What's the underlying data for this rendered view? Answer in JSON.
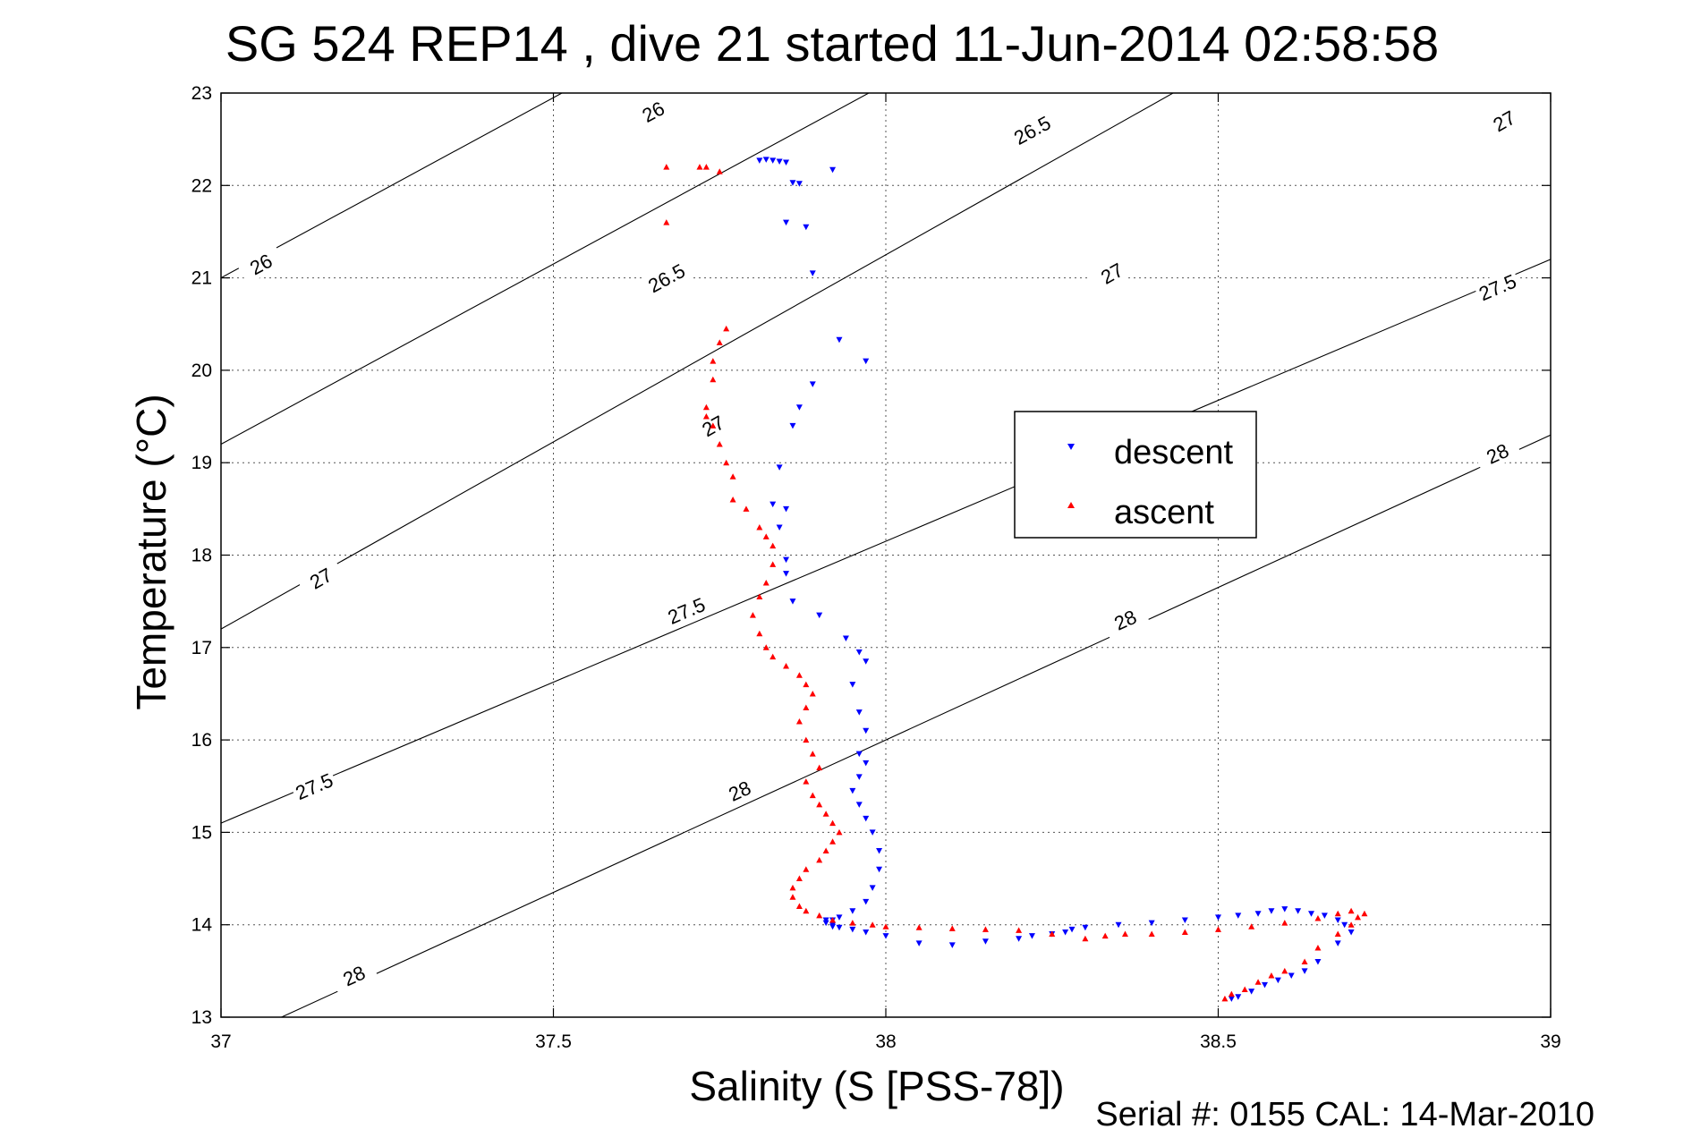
{
  "chart_data": {
    "type": "scatter",
    "title": "SG 524   REP14  , dive 21 started 11-Jun-2014 02:58:58",
    "xlabel": "Salinity (S [PSS-78])",
    "ylabel": "Temperature (°C)",
    "xlim": [
      37,
      39
    ],
    "ylim": [
      13,
      23
    ],
    "x_ticks": [
      "37",
      "37.5",
      "38",
      "38.5",
      "39"
    ],
    "y_ticks": [
      "13",
      "14",
      "15",
      "16",
      "17",
      "18",
      "19",
      "20",
      "21",
      "22",
      "23"
    ],
    "grid": true,
    "legend_position": "center-right",
    "footer": "Serial #: 0155  CAL: 14-Mar-2010",
    "density_contours": [
      {
        "label": "26",
        "x": [
          37,
          39
        ],
        "y": [
          21.0,
          28.8
        ],
        "label_positions": [
          [
            37.06,
            21.15
          ],
          [
            37.65,
            22.8
          ]
        ]
      },
      {
        "label": "26.5",
        "x": [
          37,
          39
        ],
        "y": [
          19.2,
          27.0
        ],
        "label_positions": [
          [
            37.67,
            21.0
          ],
          [
            38.22,
            22.6
          ]
        ]
      },
      {
        "label": "27",
        "x": [
          37,
          39
        ],
        "y": [
          17.2,
          25.3
        ],
        "label_positions": [
          [
            37.15,
            17.75
          ],
          [
            37.74,
            19.4
          ],
          [
            38.34,
            21.05
          ],
          [
            38.93,
            22.7
          ]
        ]
      },
      {
        "label": "27.5",
        "x": [
          37,
          39
        ],
        "y": [
          15.1,
          21.2
        ],
        "label_positions": [
          [
            37.14,
            15.5
          ],
          [
            37.7,
            17.4
          ],
          [
            38.92,
            20.9
          ]
        ]
      },
      {
        "label": "28",
        "x": [
          37,
          39
        ],
        "y": [
          12.7,
          19.3
        ],
        "label_positions": [
          [
            37.2,
            13.45
          ],
          [
            37.78,
            15.45
          ],
          [
            38.36,
            17.3
          ],
          [
            38.92,
            19.1
          ]
        ]
      }
    ],
    "series": [
      {
        "name": "descent",
        "color": "#0000ff",
        "marker": "triangle-down",
        "x": [
          37.81,
          37.82,
          37.83,
          37.84,
          37.85,
          37.86,
          37.87,
          37.92,
          37.85,
          37.88,
          37.89,
          37.93,
          37.97,
          37.89,
          37.87,
          37.86,
          37.84,
          37.83,
          37.85,
          37.84,
          37.85,
          37.85,
          37.86,
          37.9,
          37.94,
          37.96,
          37.97,
          37.95,
          37.96,
          37.97,
          37.96,
          37.97,
          37.96,
          37.95,
          37.96,
          37.97,
          37.98,
          37.99,
          37.99,
          37.98,
          37.97,
          37.95,
          37.93,
          37.92,
          37.91,
          37.91,
          37.92,
          37.92,
          37.93,
          37.95,
          37.97,
          38.0,
          38.05,
          38.1,
          38.15,
          38.2,
          38.22,
          38.25,
          38.27,
          38.28,
          38.3,
          38.35,
          38.4,
          38.45,
          38.5,
          38.53,
          38.56,
          38.58,
          38.6,
          38.62,
          38.64,
          38.66,
          38.68,
          38.69,
          38.7,
          38.68,
          38.65,
          38.63,
          38.61,
          38.59,
          38.57,
          38.55,
          38.53,
          38.52
        ],
        "y": [
          22.27,
          22.28,
          22.27,
          22.26,
          22.25,
          22.03,
          22.02,
          22.17,
          21.6,
          21.55,
          21.05,
          20.33,
          20.1,
          19.85,
          19.6,
          19.4,
          18.95,
          18.55,
          18.5,
          18.3,
          17.95,
          17.8,
          17.5,
          17.35,
          17.1,
          16.95,
          16.85,
          16.6,
          16.3,
          16.1,
          15.85,
          15.75,
          15.6,
          15.45,
          15.3,
          15.15,
          15.0,
          14.8,
          14.6,
          14.4,
          14.25,
          14.15,
          14.08,
          14.05,
          14.05,
          14.02,
          14.0,
          13.98,
          13.97,
          13.95,
          13.92,
          13.88,
          13.8,
          13.78,
          13.82,
          13.85,
          13.88,
          13.9,
          13.92,
          13.95,
          13.97,
          14.0,
          14.02,
          14.05,
          14.08,
          14.1,
          14.12,
          14.15,
          14.17,
          14.15,
          14.12,
          14.1,
          14.05,
          14.0,
          13.92,
          13.8,
          13.6,
          13.5,
          13.45,
          13.4,
          13.35,
          13.28,
          13.22,
          13.2
        ]
      },
      {
        "name": "ascent",
        "color": "#ff0000",
        "marker": "triangle-up",
        "x": [
          37.67,
          37.72,
          37.73,
          37.75,
          37.67,
          37.76,
          37.75,
          37.74,
          37.74,
          37.73,
          37.73,
          37.74,
          37.75,
          37.76,
          37.77,
          37.77,
          37.79,
          37.81,
          37.82,
          37.83,
          37.83,
          37.82,
          37.81,
          37.8,
          37.81,
          37.82,
          37.83,
          37.85,
          37.87,
          37.88,
          37.89,
          37.88,
          37.87,
          37.88,
          37.89,
          37.9,
          37.88,
          37.89,
          37.9,
          37.91,
          37.92,
          37.93,
          37.92,
          37.91,
          37.9,
          37.88,
          37.87,
          37.86,
          37.86,
          37.87,
          37.88,
          37.9,
          37.92,
          37.95,
          37.98,
          38.0,
          38.05,
          38.1,
          38.15,
          38.2,
          38.25,
          38.3,
          38.33,
          38.36,
          38.4,
          38.45,
          38.5,
          38.55,
          38.6,
          38.65,
          38.68,
          38.7,
          38.72,
          38.71,
          38.7,
          38.68,
          38.65,
          38.63,
          38.6,
          38.58,
          38.56,
          38.54,
          38.52,
          38.51
        ],
        "y": [
          22.2,
          22.2,
          22.2,
          22.15,
          21.6,
          20.45,
          20.3,
          20.1,
          19.9,
          19.6,
          19.5,
          19.4,
          19.2,
          19.0,
          18.85,
          18.6,
          18.5,
          18.3,
          18.2,
          18.1,
          17.9,
          17.7,
          17.55,
          17.35,
          17.15,
          17.0,
          16.9,
          16.8,
          16.7,
          16.6,
          16.5,
          16.35,
          16.2,
          16.0,
          15.85,
          15.7,
          15.55,
          15.4,
          15.3,
          15.2,
          15.1,
          15.0,
          14.9,
          14.8,
          14.7,
          14.6,
          14.5,
          14.4,
          14.3,
          14.2,
          14.15,
          14.1,
          14.05,
          14.02,
          14.0,
          13.98,
          13.97,
          13.96,
          13.95,
          13.94,
          13.9,
          13.85,
          13.88,
          13.9,
          13.9,
          13.92,
          13.95,
          13.98,
          14.02,
          14.07,
          14.12,
          14.15,
          14.12,
          14.08,
          14.0,
          13.9,
          13.75,
          13.6,
          13.5,
          13.45,
          13.38,
          13.3,
          13.25,
          13.2
        ]
      }
    ]
  }
}
